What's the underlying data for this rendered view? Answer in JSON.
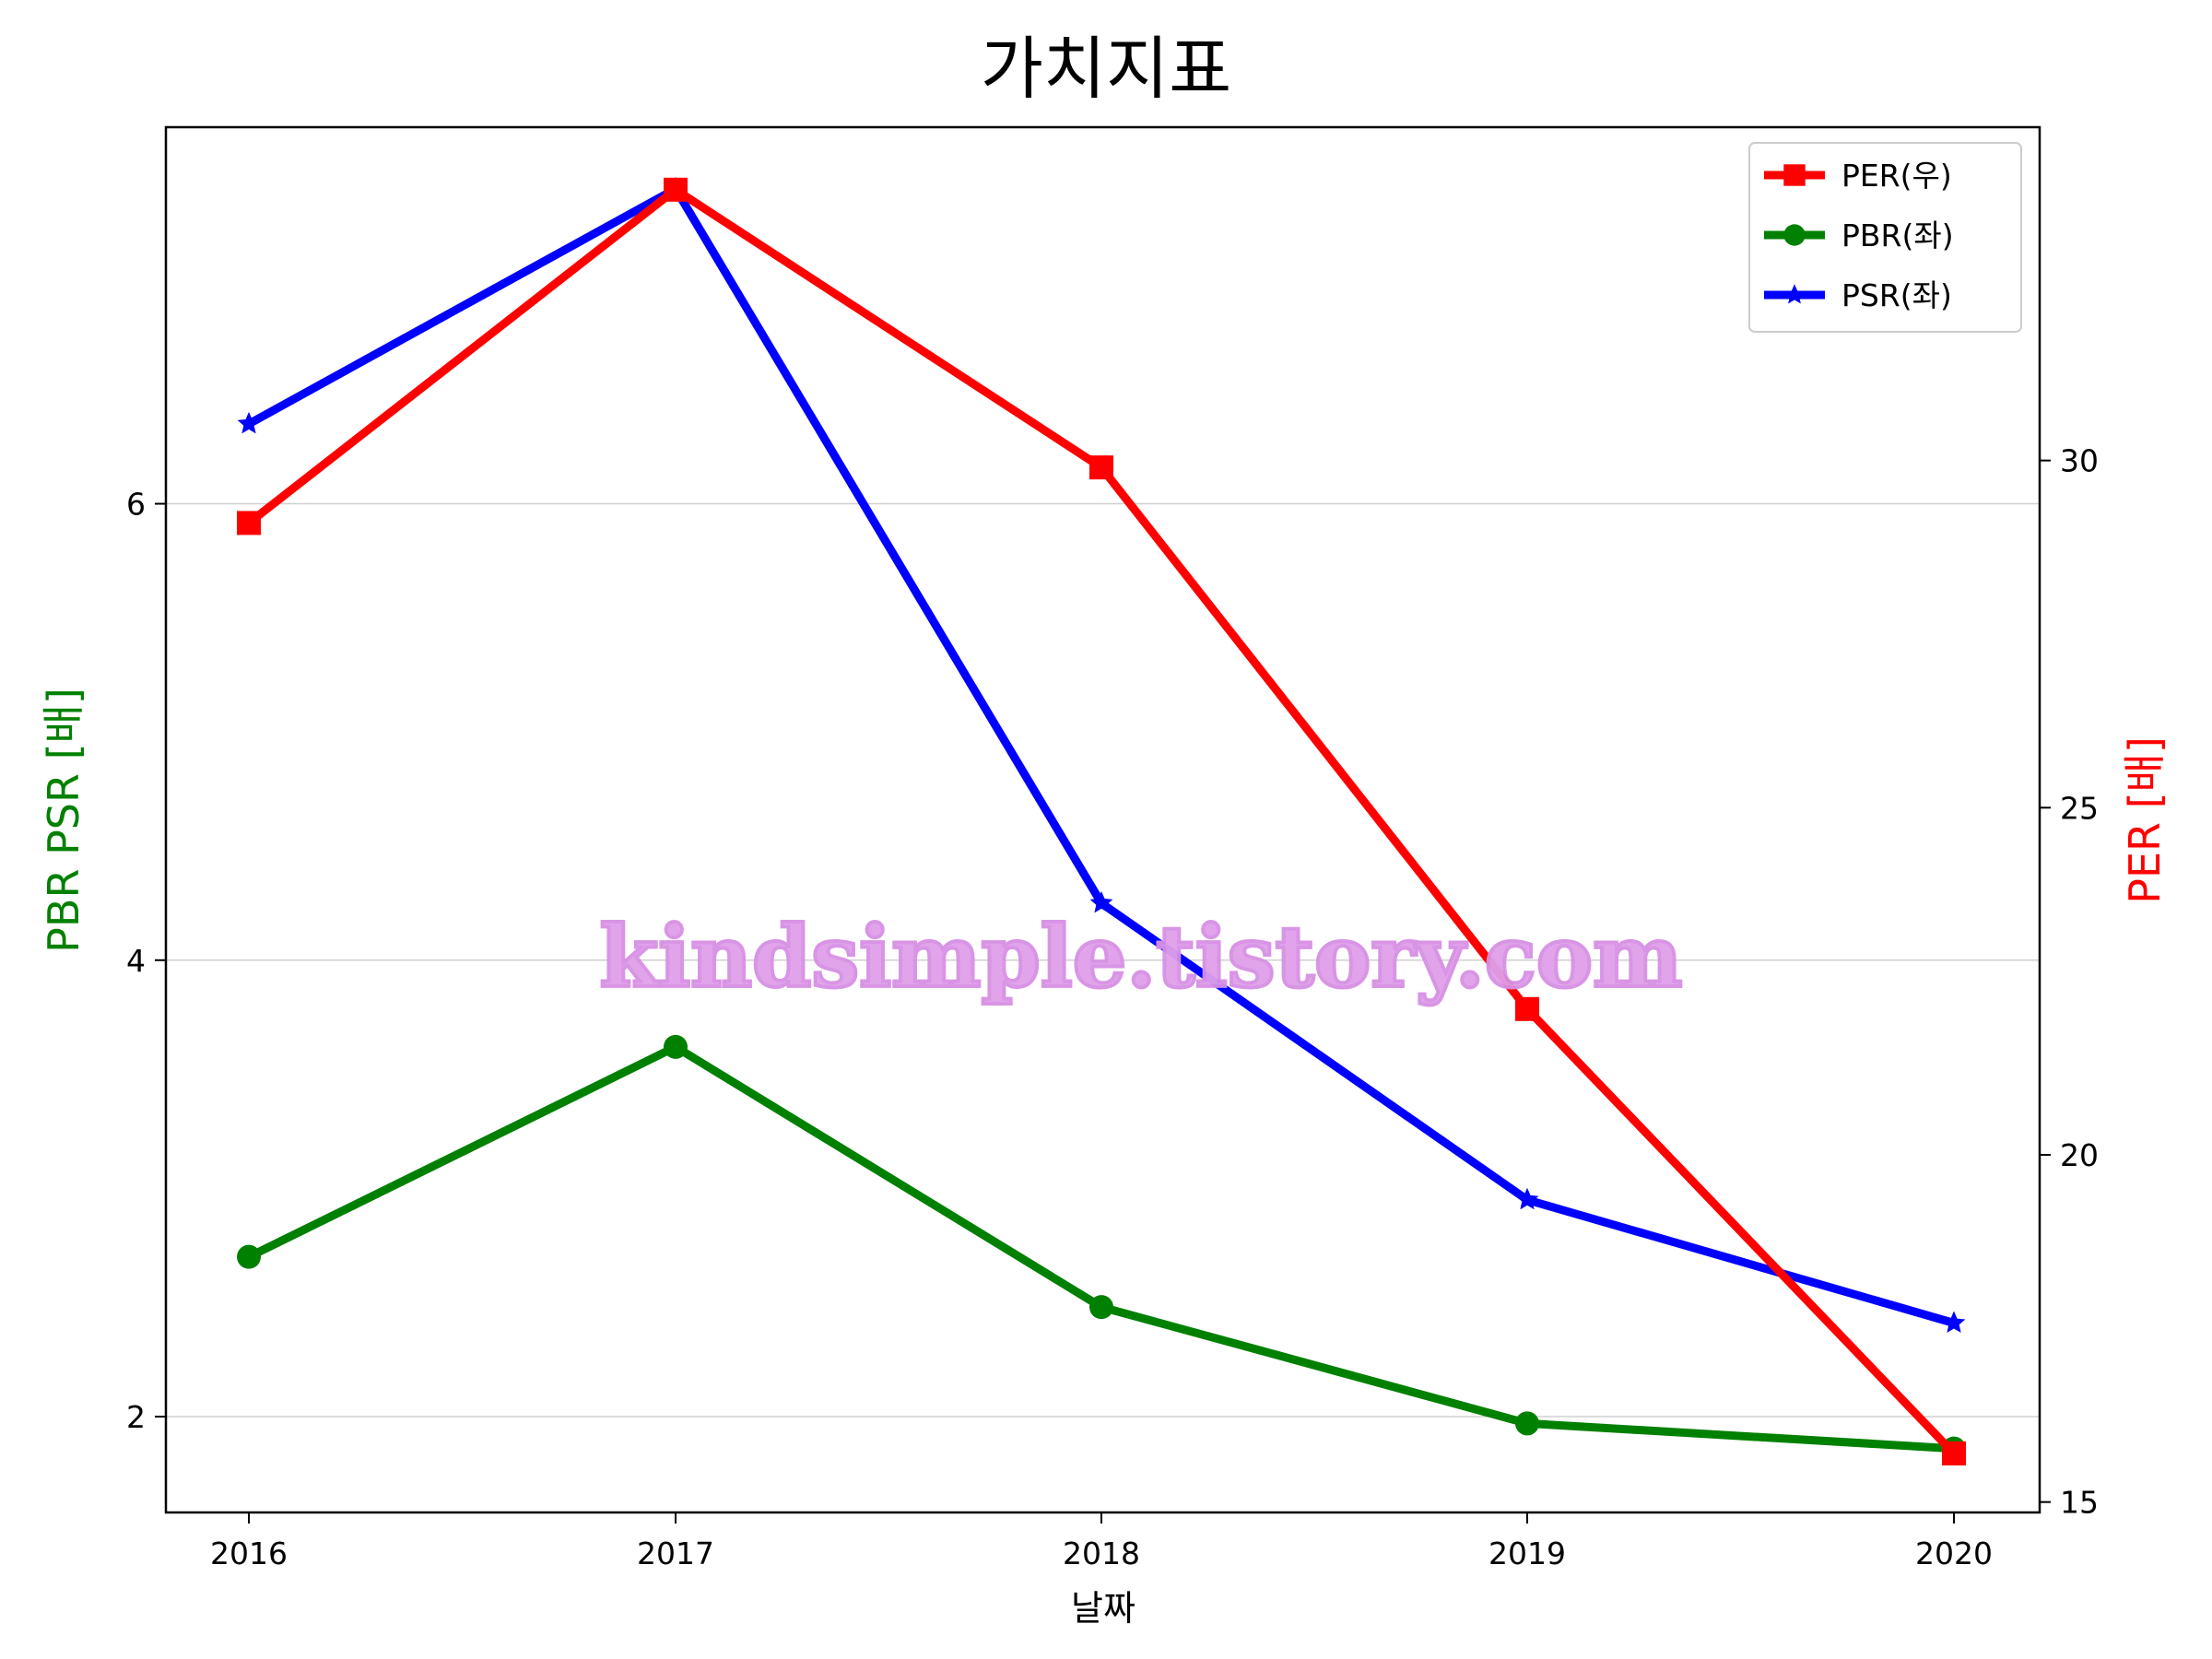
{
  "chart_data": {
    "type": "line",
    "title": "가치지표",
    "xlabel": "날짜",
    "ylabel_left": "PBR PSR [배]",
    "ylabel_right": "PER [배]",
    "categories": [
      "2016",
      "2017",
      "2018",
      "2019",
      "2020"
    ],
    "left_axis": {
      "ticks": [
        "2",
        "4",
        "6"
      ],
      "ylim": [
        1.58,
        7.65
      ]
    },
    "right_axis": {
      "ticks": [
        "15",
        "20",
        "25",
        "30"
      ],
      "ylim": [
        14.85,
        34.8
      ]
    },
    "grid": "horizontal (left axis)",
    "legend_position": "top-right",
    "series": [
      {
        "name": "PER(우)",
        "axis": "right",
        "color": "#ff0000",
        "marker": "square",
        "values": [
          29.1,
          33.9,
          29.9,
          22.1,
          15.7
        ]
      },
      {
        "name": "PBR(좌)",
        "axis": "left",
        "color": "#008000",
        "marker": "circle",
        "values": [
          2.7,
          3.62,
          2.48,
          1.97,
          1.86
        ]
      },
      {
        "name": "PSR(좌)",
        "axis": "left",
        "color": "#0000ff",
        "marker": "star",
        "values": [
          6.35,
          7.38,
          4.25,
          2.95,
          2.41
        ]
      }
    ],
    "watermark": "kindsimple.tistory.com",
    "colors": {
      "left_label": "#008000",
      "right_label": "#ff0000",
      "watermark": "#e0a0ea"
    }
  }
}
